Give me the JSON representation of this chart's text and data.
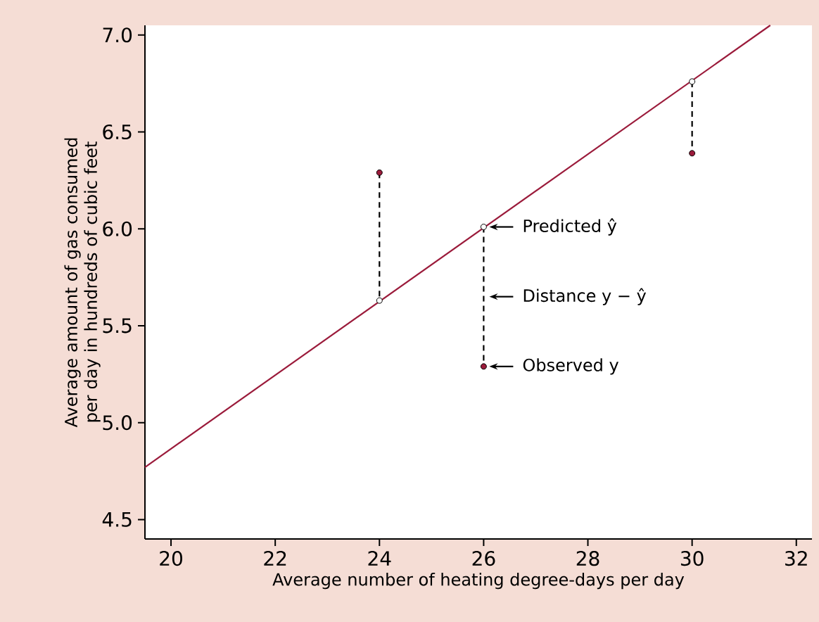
{
  "chart_data": {
    "type": "scatter",
    "xlabel": "Average number of heating degree-days per day",
    "ylabel": "Average amount of gas consumed per day in hundreds of cubic feet",
    "xlim": [
      19.5,
      32.3
    ],
    "xticks": [
      20,
      22,
      24,
      26,
      28,
      30,
      32
    ],
    "ylim": [
      4.4,
      7.05
    ],
    "yticks": [
      4.5,
      {
        "value": 5,
        "label": "5.0"
      },
      5.5,
      {
        "value": 6,
        "label": "6.0"
      },
      6.5,
      {
        "value": 7,
        "label": "7.0"
      }
    ],
    "grid": false,
    "series": [
      {
        "type": "line",
        "color": "#9b1b3b",
        "marker": "none",
        "line_style": "solid",
        "x": [
          19.5,
          31.5
        ],
        "values": [
          4.77,
          7.05
        ]
      },
      {
        "type": "line",
        "color": "#000000",
        "marker": "none",
        "line_style": "dashed",
        "x": [
          24,
          24,
          25,
          26,
          26,
          27,
          30,
          30
        ],
        "values": [
          6.29,
          5.63,
          null,
          6.01,
          5.29,
          null,
          6.76,
          6.39
        ]
      },
      {
        "color": "#9b1b3b",
        "marker": "circle",
        "x": [
          24,
          26,
          30
        ],
        "values": [
          6.29,
          5.29,
          6.39
        ]
      },
      {
        "color": "#ffffff",
        "marker": "circle",
        "x": [
          24,
          26,
          30
        ],
        "values": [
          5.63,
          6.01,
          6.76
        ]
      }
    ],
    "annotations": [
      "Predicted ŷ",
      "Distance y − ŷ",
      "Observed y"
    ]
  }
}
